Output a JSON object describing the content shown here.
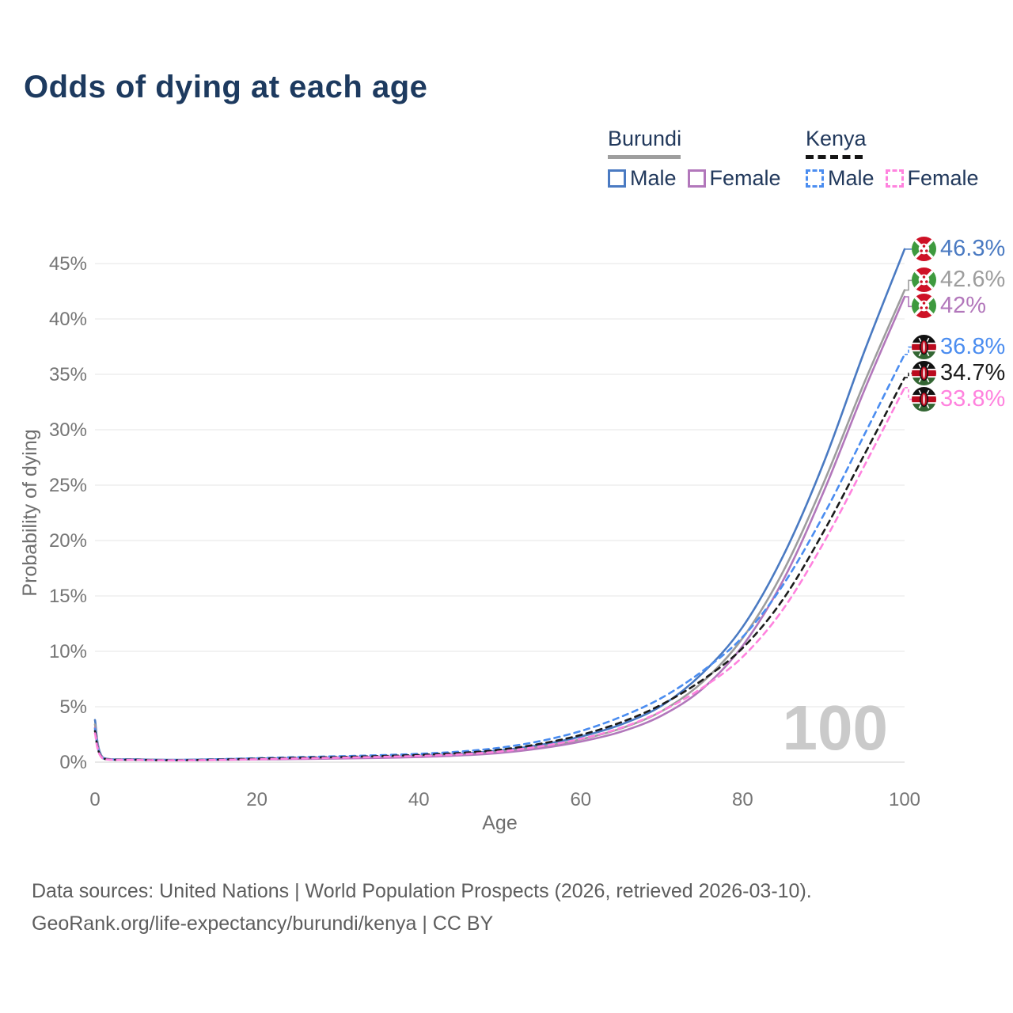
{
  "title": "Odds of dying at each age",
  "legend": {
    "burundi": {
      "label": "Burundi",
      "male": "Male",
      "female": "Female"
    },
    "kenya": {
      "label": "Kenya",
      "male": "Male",
      "female": "Female"
    }
  },
  "watermark": "100",
  "footer": {
    "line1": "Data sources: United Nations | World Population Prospects (2026, retrieved 2026-03-10).",
    "line2": "GeoRank.org/life-expectancy/burundi/kenya | CC BY"
  },
  "colors": {
    "burundi_male": "#4a7ac2",
    "burundi_total": "#9d9d9d",
    "burundi_female": "#b277bb",
    "kenya_male": "#4b8df0",
    "kenya_total": "#1c1c1c",
    "kenya_female": "#ff82de",
    "grid": "#ededed",
    "grid_zero": "#e0e0e0",
    "axis_text": "#757575",
    "axis_title": "#6f6f6f",
    "title_text": "#1d3a5f",
    "watermark": "#cacaca"
  },
  "chart_data": {
    "type": "line",
    "title": "Odds of dying at each age",
    "xlabel": "Age",
    "ylabel": "Probability of dying",
    "xlim": [
      0,
      100
    ],
    "ylim_percent": [
      0,
      47
    ],
    "x_ticks": [
      0,
      20,
      40,
      60,
      80,
      100
    ],
    "y_ticks_percent": [
      0,
      5,
      10,
      15,
      20,
      25,
      30,
      35,
      40,
      45
    ],
    "y_tick_labels": [
      "0%",
      "5%",
      "10%",
      "15%",
      "20%",
      "25%",
      "30%",
      "35%",
      "40%",
      "45%"
    ],
    "grid": true,
    "legend_position": "top-right",
    "ages": [
      0,
      1,
      5,
      10,
      15,
      20,
      25,
      30,
      35,
      40,
      45,
      50,
      55,
      60,
      65,
      70,
      75,
      80,
      85,
      90,
      95,
      100
    ],
    "series": [
      {
        "name": "Burundi Male",
        "country": "burundi",
        "style": "solid",
        "color_key": "burundi_male",
        "end_label": "46.3%",
        "values_percent": [
          3.8,
          0.4,
          0.26,
          0.21,
          0.26,
          0.32,
          0.37,
          0.42,
          0.48,
          0.58,
          0.75,
          1.05,
          1.55,
          2.3,
          3.4,
          5.1,
          8.0,
          12.2,
          18.6,
          27.0,
          37.0,
          46.3
        ]
      },
      {
        "name": "Burundi Both sexes",
        "country": "burundi",
        "style": "solid",
        "color_key": "burundi_total",
        "end_label": "42.6%",
        "values_percent": [
          3.4,
          0.37,
          0.24,
          0.19,
          0.23,
          0.28,
          0.33,
          0.38,
          0.43,
          0.52,
          0.67,
          0.93,
          1.38,
          2.05,
          3.05,
          4.6,
          7.2,
          11.2,
          17.2,
          25.2,
          34.2,
          42.6
        ]
      },
      {
        "name": "Burundi Female",
        "country": "burundi",
        "style": "solid",
        "color_key": "burundi_female",
        "end_label": "42%",
        "values_percent": [
          3.1,
          0.34,
          0.22,
          0.17,
          0.2,
          0.24,
          0.28,
          0.33,
          0.38,
          0.46,
          0.6,
          0.83,
          1.24,
          1.85,
          2.75,
          4.2,
          6.6,
          10.5,
          16.4,
          24.4,
          33.5,
          42.0
        ]
      },
      {
        "name": "Kenya Male",
        "country": "kenya",
        "style": "dashed",
        "color_key": "kenya_male",
        "end_label": "36.8%",
        "values_percent": [
          3.0,
          0.36,
          0.23,
          0.19,
          0.26,
          0.36,
          0.45,
          0.53,
          0.62,
          0.75,
          0.95,
          1.3,
          1.9,
          2.8,
          4.1,
          5.8,
          8.2,
          11.3,
          16.0,
          22.3,
          29.5,
          36.8
        ]
      },
      {
        "name": "Kenya Both sexes",
        "country": "kenya",
        "style": "dashed",
        "color_key": "kenya_total",
        "end_label": "34.7%",
        "values_percent": [
          2.8,
          0.33,
          0.21,
          0.17,
          0.23,
          0.31,
          0.39,
          0.46,
          0.54,
          0.65,
          0.82,
          1.12,
          1.65,
          2.45,
          3.6,
          5.2,
          7.4,
          10.3,
          14.7,
          20.8,
          27.7,
          34.7
        ]
      },
      {
        "name": "Kenya Female",
        "country": "kenya",
        "style": "dashed",
        "color_key": "kenya_female",
        "end_label": "33.8%",
        "values_percent": [
          2.6,
          0.31,
          0.2,
          0.16,
          0.2,
          0.26,
          0.33,
          0.4,
          0.47,
          0.56,
          0.7,
          0.96,
          1.42,
          2.1,
          3.1,
          4.6,
          6.7,
          9.5,
          13.8,
          19.8,
          26.7,
          33.8
        ]
      }
    ]
  }
}
